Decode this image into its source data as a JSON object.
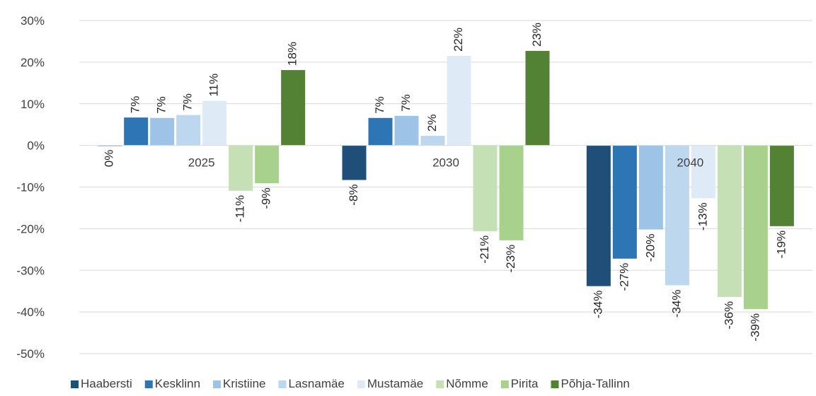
{
  "chart_data": {
    "type": "bar",
    "categories": [
      "2025",
      "2030",
      "2040"
    ],
    "ylim": [
      -50,
      30
    ],
    "yticks": [
      30,
      20,
      10,
      0,
      -10,
      -20,
      -30,
      -40,
      -50
    ],
    "ytick_labels": [
      "30%",
      "20%",
      "10%",
      "0%",
      "-10%",
      "-20%",
      "-30%",
      "-40%",
      "-50%"
    ],
    "grid": true,
    "legend_position": "bottom",
    "series": [
      {
        "name": "Haabersti",
        "color": "#1f4e79",
        "values": [
          0,
          -8.3,
          -33.8
        ],
        "labels": [
          "0%",
          "-8%",
          "-34%"
        ]
      },
      {
        "name": "Kesklinn",
        "color": "#2e75b6",
        "values": [
          6.7,
          6.6,
          -27.2
        ],
        "labels": [
          "7%",
          "7%",
          "-27%"
        ]
      },
      {
        "name": "Kristiine",
        "color": "#9dc3e6",
        "values": [
          6.6,
          7.1,
          -20.2
        ],
        "labels": [
          "7%",
          "7%",
          "-20%"
        ]
      },
      {
        "name": "Lasnamäe",
        "color": "#bdd7ee",
        "values": [
          7.3,
          2.3,
          -33.6
        ],
        "labels": [
          "7%",
          "2%",
          "-34%"
        ]
      },
      {
        "name": "Mustamäe",
        "color": "#deebf7",
        "values": [
          10.7,
          21.5,
          -12.7
        ],
        "labels": [
          "11%",
          "22%",
          "-13%"
        ]
      },
      {
        "name": "Nõmme",
        "color": "#c5e0b4",
        "values": [
          -10.9,
          -20.6,
          -36.4
        ],
        "labels": [
          "-11%",
          "-21%",
          "-36%"
        ]
      },
      {
        "name": "Pirita",
        "color": "#a9d18e",
        "values": [
          -9.1,
          -22.8,
          -39.3
        ],
        "labels": [
          "-9%",
          "-23%",
          "-39%"
        ]
      },
      {
        "name": "Põhja-Tallinn",
        "color": "#548235",
        "values": [
          18.1,
          22.7,
          -19.4
        ],
        "labels": [
          "18%",
          "23%",
          "-19%"
        ]
      }
    ]
  }
}
